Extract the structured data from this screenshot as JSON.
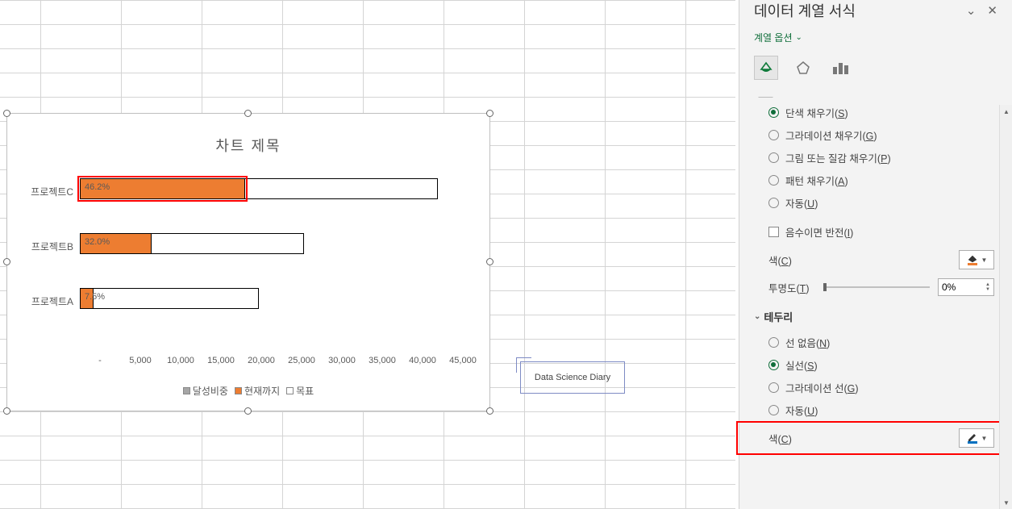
{
  "chart": {
    "title": "차트 제목",
    "categories": [
      "프로젝트C",
      "프로젝트B",
      "프로젝트A"
    ],
    "series": {
      "pct_labels": [
        "46.2%",
        "32.0%",
        "7.5%"
      ],
      "goal": [
        40000,
        25000,
        20000
      ],
      "current": [
        18480,
        8000,
        1500
      ]
    },
    "x_ticks": [
      "-",
      "5,000",
      "10,000",
      "15,000",
      "20,000",
      "25,000",
      "30,000",
      "35,000",
      "40,000",
      "45,000"
    ],
    "x_max": 45000,
    "legend": [
      "달성비중",
      "현재까지",
      "목표"
    ],
    "legend_colors": [
      "#a6a6a6",
      "#ed7d31",
      "#ffffff"
    ],
    "highlight_row": 0
  },
  "watermark": "Data Science Diary",
  "pane": {
    "title": "데이터 계열 서식",
    "subtitle": "계열 옵션",
    "fill_section": {
      "options": [
        {
          "label": "단색 채우기(",
          "u": "S",
          "tail": ")",
          "checked": true
        },
        {
          "label": "그라데이션 채우기(",
          "u": "G",
          "tail": ")",
          "checked": false
        },
        {
          "label": "그림 또는 질감 채우기(",
          "u": "P",
          "tail": ")",
          "checked": false
        },
        {
          "label": "패턴 채우기(",
          "u": "A",
          "tail": ")",
          "checked": false
        },
        {
          "label": "자동(",
          "u": "U",
          "tail": ")",
          "checked": false
        }
      ],
      "invert": {
        "label": "음수이면 반전(",
        "u": "I",
        "tail": ")"
      },
      "color_label_pre": "색(",
      "color_label_u": "C",
      "color_label_post": ")",
      "color_value": "#ed7d31",
      "transparency_pre": "투명도(",
      "transparency_u": "T",
      "transparency_post": ")",
      "transparency_value": "0%"
    },
    "border_section": {
      "title": "테두리",
      "options": [
        {
          "label": "선 없음(",
          "u": "N",
          "tail": ")",
          "checked": false
        },
        {
          "label": "실선(",
          "u": "S",
          "tail": ")",
          "checked": true
        },
        {
          "label": "그라데이션 선(",
          "u": "G",
          "tail": ")",
          "checked": false
        },
        {
          "label": "자동(",
          "u": "U",
          "tail": ")",
          "checked": false
        }
      ],
      "color_label_pre": "색(",
      "color_label_u": "C",
      "color_label_post": ")",
      "color_value": "#000000"
    }
  }
}
